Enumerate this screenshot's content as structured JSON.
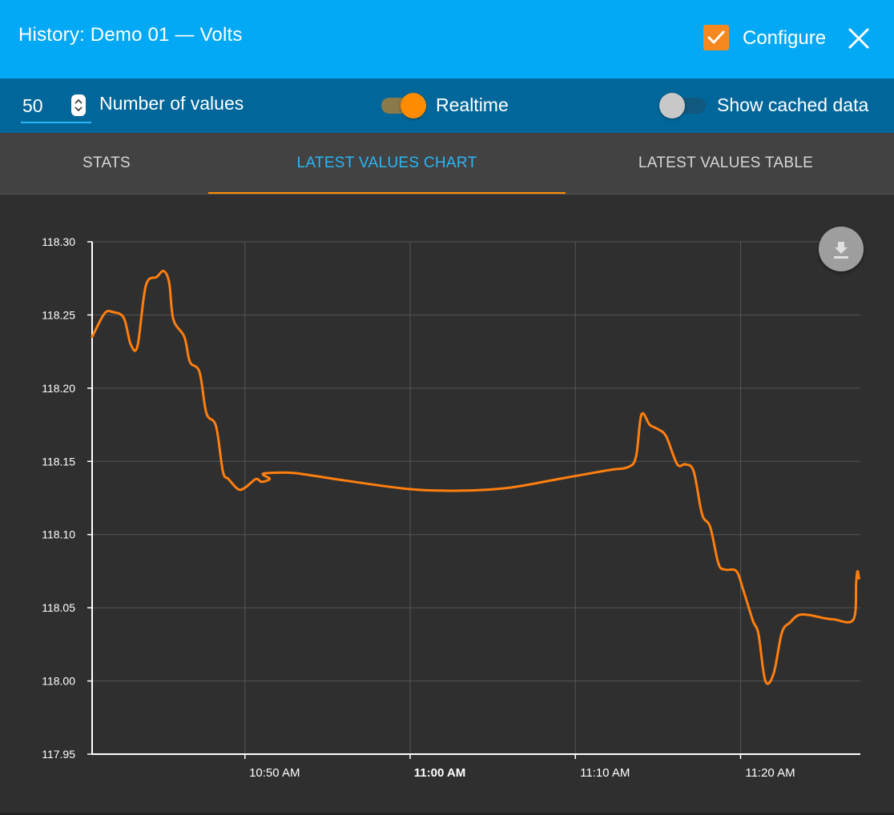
{
  "header": {
    "title": "History: Demo 01 — Volts",
    "configure_label": "Configure",
    "configure_checked": true
  },
  "controls": {
    "num_values": "50",
    "num_values_label": "Number of values",
    "realtime_label": "Realtime",
    "realtime_on": true,
    "cached_label": "Show cached data",
    "cached_on": false
  },
  "tabs": [
    {
      "label": "STATS",
      "active": false
    },
    {
      "label": "LATEST VALUES CHART",
      "active": true
    },
    {
      "label": "LATEST VALUES TABLE",
      "active": false
    }
  ],
  "colors": {
    "header": "#03a9f4",
    "controls": "#01679a",
    "accent": "#ff8c00",
    "active_tab": "#29b6f6",
    "line": "#ff7f0e"
  },
  "icons": {
    "configure": "checkbox-checked-icon",
    "close": "close-icon",
    "stepper": "spinner-arrows-icon",
    "download": "download-icon"
  },
  "chart_data": {
    "type": "line",
    "title": "",
    "xlabel": "",
    "ylabel": "",
    "ylim": [
      117.95,
      118.3
    ],
    "yticks": [
      "118.30",
      "118.25",
      "118.20",
      "118.15",
      "118.10",
      "118.05",
      "118.00",
      "117.95"
    ],
    "xticks": [
      {
        "label": "10:50 AM",
        "time": "10:50",
        "bold": false
      },
      {
        "label": "11:00 AM",
        "time": "11:00",
        "bold": true
      },
      {
        "label": "11:10 AM",
        "time": "11:10",
        "bold": false
      },
      {
        "label": "11:20 AM",
        "time": "11:20",
        "bold": false
      }
    ],
    "xlim": [
      "10:40:45",
      "11:27:15"
    ],
    "grid": true,
    "series": [
      {
        "x": [
          "10:40:45",
          "10:41:30",
          "10:42:00",
          "10:42:40",
          "10:43:05",
          "10:43:30",
          "10:44:00",
          "10:44:40",
          "10:45:05",
          "10:45:25",
          "10:45:40",
          "10:46:20",
          "10:46:40",
          "10:47:15",
          "10:47:40",
          "10:48:15",
          "10:48:40",
          "10:49:00",
          "10:49:35",
          "10:50:00",
          "10:50:40",
          "10:51:00",
          "10:51:30",
          "10:51:05",
          "10:51:25",
          "10:53:00",
          "10:56:00",
          "11:00:00",
          "11:03:00",
          "11:06:00",
          "11:09:00",
          "11:12:00",
          "11:13:10",
          "11:13:40",
          "11:14:00",
          "11:14:30",
          "11:15:00",
          "11:15:30",
          "11:16:10",
          "11:16:40",
          "11:17:10",
          "11:17:40",
          "11:18:10",
          "11:18:40",
          "11:19:05",
          "11:19:45",
          "11:20:10",
          "11:20:45",
          "11:21:05",
          "11:21:30",
          "11:22:00",
          "11:22:30",
          "11:23:00",
          "11:23:30",
          "11:24:10",
          "11:25:00",
          "11:25:40",
          "11:26:50",
          "11:27:00",
          "11:27:05",
          "11:27:10"
        ],
        "y": [
          118.235,
          118.251,
          118.252,
          118.248,
          118.23,
          118.229,
          118.27,
          118.276,
          118.28,
          118.272,
          118.247,
          118.235,
          118.218,
          118.211,
          118.183,
          118.174,
          118.143,
          118.138,
          118.131,
          118.132,
          118.138,
          118.136,
          118.138,
          118.141,
          118.142,
          118.142,
          118.137,
          118.131,
          118.13,
          118.132,
          118.138,
          118.144,
          118.146,
          118.153,
          118.182,
          118.175,
          118.172,
          118.167,
          118.148,
          118.148,
          118.143,
          118.114,
          118.105,
          118.08,
          118.076,
          118.075,
          118.062,
          118.041,
          118.032,
          118.0,
          118.005,
          118.033,
          118.04,
          118.045,
          118.045,
          118.043,
          118.042,
          118.042,
          118.068,
          118.075,
          118.07
        ]
      }
    ]
  }
}
